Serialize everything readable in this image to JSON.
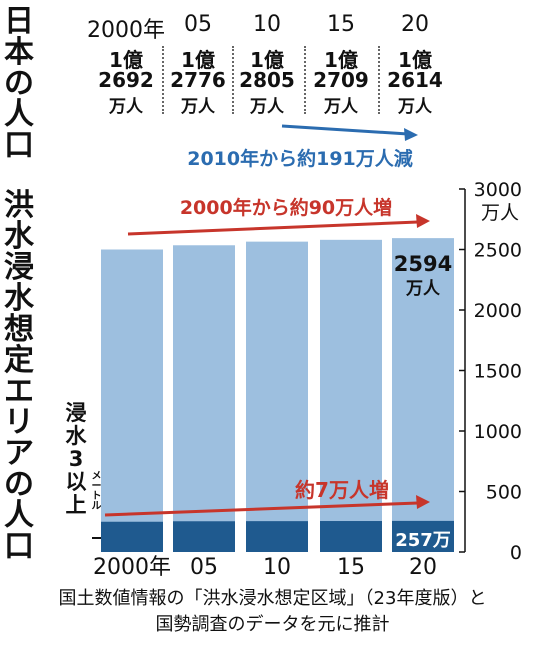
{
  "titles": {
    "top": "日本の人口",
    "bottom": "洪水浸水想定エリアの人口",
    "sub_main": "浸水3",
    "sub_unit": "メートル",
    "sub_tail": "以上"
  },
  "population_table": {
    "years": [
      "2000年",
      "05",
      "10",
      "15",
      "20"
    ],
    "oku_label": "1億",
    "man_values": [
      "2692",
      "2776",
      "2805",
      "2709",
      "2614"
    ],
    "man_unit": "万人",
    "trend_text": "2010年から約191万人減"
  },
  "colors": {
    "total_bar": "#9dbfdf",
    "deep_bar": "#1f5a8f",
    "red_arrow": "#c7352b",
    "blue_arrow": "#2b6cb0"
  },
  "chart_data": {
    "type": "bar",
    "categories": [
      "2000年",
      "05",
      "10",
      "15",
      "20"
    ],
    "series": [
      {
        "values": [
          2500,
          2535,
          2565,
          2580,
          2594
        ]
      },
      {
        "values": [
          250,
          254,
          255,
          256,
          257
        ]
      }
    ],
    "ylim": [
      0,
      3000
    ],
    "yticks": [
      0,
      500,
      1000,
      1500,
      2000,
      2500,
      3000
    ],
    "ylabel": "万人",
    "y_axis_side": "right",
    "annotations": {
      "total_trend": "2000年から約90万人増",
      "deep_trend": "約7万人増",
      "last_total": "2594",
      "last_total_unit": "万人",
      "last_deep": "257万"
    }
  },
  "source": {
    "line1": "国土数値情報の「洪水浸水想定区域」（23年度版）と",
    "line2": "国勢調査のデータを元に推計"
  }
}
